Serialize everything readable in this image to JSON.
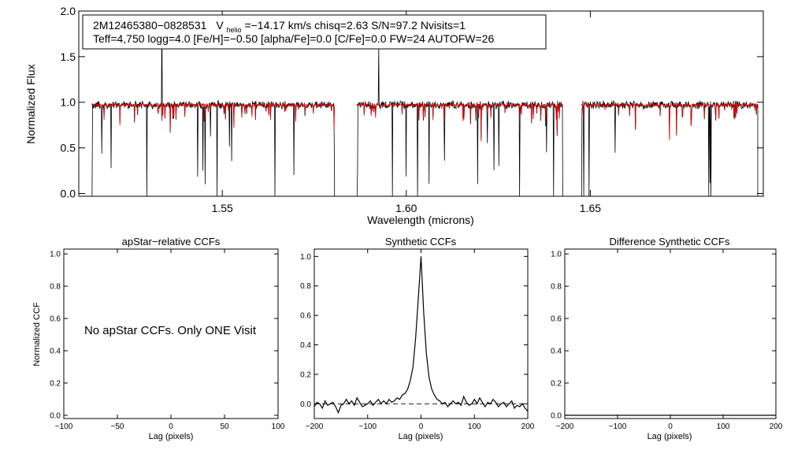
{
  "colors": {
    "observed": "#000000",
    "model": "#d60000",
    "background": "#ffffff"
  },
  "chart_data": [
    {
      "id": "spectrum",
      "type": "line",
      "xlabel": "Wavelength (microns)",
      "ylabel": "Normalized Flux",
      "xlim": [
        1.511,
        1.697
      ],
      "ylim": [
        -0.03,
        2.0
      ],
      "xticks": [
        {
          "v": 1.55,
          "label": "1.55"
        },
        {
          "v": 1.6,
          "label": "1.60"
        },
        {
          "v": 1.65,
          "label": "1.65"
        }
      ],
      "yticks": [
        {
          "v": 0.0,
          "label": "0.0"
        },
        {
          "v": 0.5,
          "label": "0.5"
        },
        {
          "v": 1.0,
          "label": "1.0"
        },
        {
          "v": 1.5,
          "label": "1.5"
        },
        {
          "v": 2.0,
          "label": "2.0"
        }
      ],
      "info": {
        "line1_id": "2M12465380−0828531",
        "line1_v": "V",
        "line1_v_sub": "helio",
        "line1_rest": "=−14.17 km/s  chisq=2.63  S/N=97.2  Nvisits=1",
        "line2": "Teff=4,750 logg=4.0 [Fe/H]=−0.50 [alpha/Fe]=0.0 [C/Fe]=0.0 FW=24 AUTOFW=26"
      },
      "chips": [
        [
          1.5145,
          1.5805
        ],
        [
          1.5865,
          1.6425
        ],
        [
          1.6475,
          1.6955
        ]
      ],
      "continuum": 0.97,
      "series": [
        {
          "name": "Observed spectrum",
          "color": "#000000"
        },
        {
          "name": "Model spectrum",
          "color": "#d60000"
        }
      ]
    },
    {
      "id": "apstar-ccf",
      "type": "line",
      "title": "apStar−relative CCFs",
      "xlabel": "Lag (pixels)",
      "ylabel": "Normalized CCF",
      "xlim": [
        -100,
        100
      ],
      "ylim": [
        -0.02,
        1.03
      ],
      "xticks": [
        {
          "v": -100,
          "label": "−100"
        },
        {
          "v": -50,
          "label": "−50"
        },
        {
          "v": 0,
          "label": "0"
        },
        {
          "v": 50,
          "label": "50"
        },
        {
          "v": 100,
          "label": "100"
        }
      ],
      "yticks": [
        {
          "v": 0.0,
          "label": "0.0"
        },
        {
          "v": 0.2,
          "label": "0.2"
        },
        {
          "v": 0.4,
          "label": "0.4"
        },
        {
          "v": 0.6,
          "label": "0.6"
        },
        {
          "v": 0.8,
          "label": "0.8"
        },
        {
          "v": 1.0,
          "label": "1.0"
        }
      ],
      "note": "No apStar CCFs.  Only ONE Visit",
      "series": []
    },
    {
      "id": "synthetic-ccf",
      "type": "line",
      "title": "Synthetic CCFs",
      "xlabel": "Lag (pixels)",
      "ylabel": "",
      "xlim": [
        -200,
        200
      ],
      "ylim": [
        -0.1,
        1.05
      ],
      "xticks": [
        {
          "v": -200,
          "label": "−200"
        },
        {
          "v": -100,
          "label": "−100"
        },
        {
          "v": 0,
          "label": "0"
        },
        {
          "v": 100,
          "label": "100"
        },
        {
          "v": 200,
          "label": "200"
        }
      ],
      "yticks": [
        {
          "v": 0.0,
          "label": "0.0"
        },
        {
          "v": 0.2,
          "label": "0.2"
        },
        {
          "v": 0.4,
          "label": "0.4"
        },
        {
          "v": 0.6,
          "label": "0.6"
        },
        {
          "v": 0.8,
          "label": "0.8"
        },
        {
          "v": 1.0,
          "label": "1.0"
        }
      ],
      "zero_line": 0.0,
      "series": [
        {
          "name": "Synthetic CCF",
          "x": [
            -200,
            -195,
            -190,
            -185,
            -180,
            -175,
            -170,
            -165,
            -160,
            -155,
            -150,
            -145,
            -140,
            -135,
            -130,
            -125,
            -120,
            -115,
            -110,
            -105,
            -100,
            -95,
            -90,
            -85,
            -80,
            -75,
            -70,
            -65,
            -60,
            -55,
            -50,
            -45,
            -40,
            -35,
            -30,
            -25,
            -20,
            -15,
            -10,
            -5,
            0,
            5,
            10,
            15,
            20,
            25,
            30,
            35,
            40,
            45,
            50,
            55,
            60,
            65,
            70,
            75,
            80,
            85,
            90,
            95,
            100,
            105,
            110,
            115,
            120,
            125,
            130,
            135,
            140,
            145,
            150,
            155,
            160,
            165,
            170,
            175,
            180,
            185,
            190,
            195,
            200
          ],
          "y": [
            -0.02,
            0.01,
            0.0,
            -0.03,
            0.02,
            -0.01,
            0.0,
            0.01,
            -0.02,
            -0.06,
            -0.01,
            0.0,
            0.03,
            0.0,
            0.02,
            -0.01,
            0.04,
            0.01,
            -0.02,
            -0.01,
            0.0,
            0.02,
            -0.01,
            0.01,
            0.03,
            0.0,
            0.02,
            0.0,
            0.03,
            0.01,
            0.02,
            0.04,
            0.03,
            0.06,
            0.07,
            0.1,
            0.16,
            0.25,
            0.45,
            0.72,
            1.0,
            0.62,
            0.34,
            0.18,
            0.1,
            0.06,
            0.03,
            0.02,
            0.0,
            0.01,
            -0.02,
            0.0,
            0.02,
            0.0,
            0.01,
            -0.01,
            0.05,
            0.01,
            -0.01,
            0.0,
            0.03,
            0.0,
            0.04,
            0.01,
            -0.02,
            0.01,
            0.0,
            0.03,
            0.01,
            -0.02,
            0.0,
            0.01,
            -0.02,
            0.0,
            0.02,
            -0.03,
            -0.01,
            -0.02,
            0.0,
            -0.03,
            -0.05
          ],
          "color": "#000000"
        }
      ]
    },
    {
      "id": "difference-ccf",
      "type": "line",
      "title": "Difference Synthetic CCFs",
      "xlabel": "Lag (pixels)",
      "ylabel": "",
      "xlim": [
        -200,
        200
      ],
      "ylim": [
        -0.02,
        1.03
      ],
      "xticks": [
        {
          "v": -200,
          "label": "−200"
        },
        {
          "v": -100,
          "label": "−100"
        },
        {
          "v": 0,
          "label": "0"
        },
        {
          "v": 100,
          "label": "100"
        },
        {
          "v": 200,
          "label": "200"
        }
      ],
      "yticks": [
        {
          "v": 0.0,
          "label": "0.0"
        },
        {
          "v": 0.2,
          "label": "0.2"
        },
        {
          "v": 0.4,
          "label": "0.4"
        },
        {
          "v": 0.6,
          "label": "0.6"
        },
        {
          "v": 0.8,
          "label": "0.8"
        },
        {
          "v": 1.0,
          "label": "1.0"
        }
      ],
      "series": [
        {
          "name": "Difference CCF",
          "x": [
            -200,
            200
          ],
          "y": [
            0.0,
            0.0
          ],
          "color": "#000000"
        }
      ]
    }
  ]
}
